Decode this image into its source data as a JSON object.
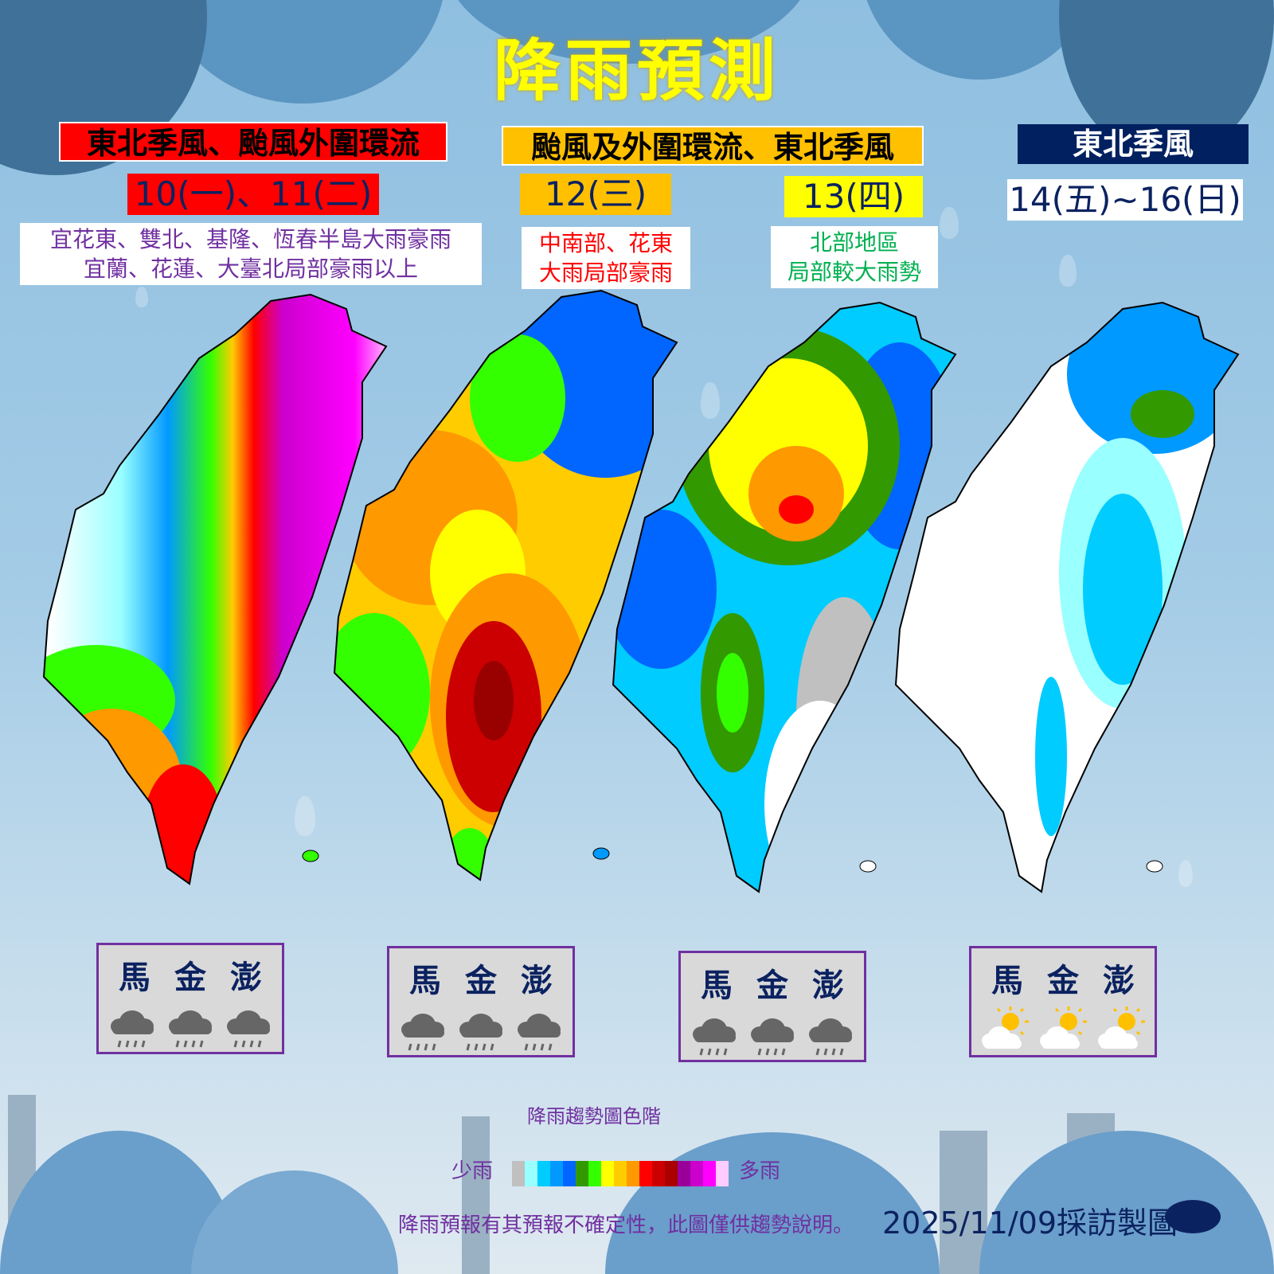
{
  "title": "降雨預測",
  "panels": [
    {
      "header": "東北季風、颱風外圍環流",
      "header_bg": "#ff0000",
      "header_color": "#000000",
      "date": "10(一)、11(二)",
      "date_bg": "#ff0000",
      "desc": [
        "宜花東、雙北、基隆、恆春半島大雨豪雨",
        "宜蘭、花蓮、大臺北局部豪雨以上"
      ],
      "desc_color": "#7030a0"
    },
    {
      "header": "颱風及外圍環流、東北季風",
      "header_bg": "#ffc000",
      "header_color": "#000000",
      "date": "12(三)",
      "date_bg": "#ffc000",
      "desc": [
        "中南部、花東",
        "大雨局部豪雨"
      ],
      "desc_color": "#ff0000"
    },
    {
      "date": "13(四)",
      "date_bg": "#ffff00",
      "desc": [
        "北部地區",
        "局部較大雨勢"
      ],
      "desc_color": "#00b050"
    },
    {
      "header": "東北季風",
      "header_bg": "#002060",
      "header_color": "#ffffff",
      "date": "14(五)~16(日)",
      "date_bg": "#ffffff"
    }
  ],
  "islands": [
    {
      "names": [
        "馬",
        "金",
        "澎"
      ],
      "weather": [
        "rain-cloud-icon",
        "rain-cloud-icon",
        "rain-cloud-icon"
      ]
    },
    {
      "names": [
        "馬",
        "金",
        "澎"
      ],
      "weather": [
        "rain-cloud-icon",
        "rain-cloud-icon",
        "rain-cloud-icon"
      ]
    },
    {
      "names": [
        "馬",
        "金",
        "澎"
      ],
      "weather": [
        "rain-cloud-icon",
        "rain-cloud-icon",
        "rain-cloud-icon"
      ]
    },
    {
      "names": [
        "馬",
        "金",
        "澎"
      ],
      "weather": [
        "sun-cloud-icon",
        "sun-cloud-icon",
        "sun-cloud-icon"
      ]
    }
  ],
  "legend": {
    "title": "降雨趨勢圖色階",
    "low": "少雨",
    "high": "多雨",
    "colors": [
      "#c0c0c0",
      "#99ffff",
      "#00ccff",
      "#0099ff",
      "#0066ff",
      "#339900",
      "#33ff00",
      "#ffff00",
      "#ffcc00",
      "#ff9900",
      "#ff0000",
      "#cc0000",
      "#aa0000",
      "#990099",
      "#cc00cc",
      "#ff00ff",
      "#ffccff"
    ]
  },
  "footer": {
    "disclaimer": "降雨預報有其預報不確定性，此圖僅供趨勢說明。",
    "made": "2025/11/09採訪製圖",
    "logo": "☁"
  }
}
